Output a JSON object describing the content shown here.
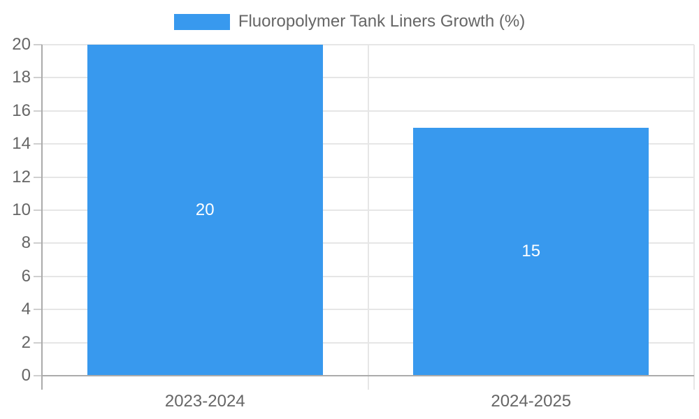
{
  "chart_data": {
    "type": "bar",
    "title": "Fluoropolymer Tank Liners Growth (%)",
    "categories": [
      "2023-2024",
      "2024-2025"
    ],
    "values": [
      20,
      15
    ],
    "data_labels": [
      "20",
      "15"
    ],
    "xlabel": "",
    "ylabel": "",
    "ylim": [
      0,
      20
    ],
    "ytick_step": 2,
    "ytick_labels": [
      "0",
      "2",
      "4",
      "6",
      "8",
      "10",
      "12",
      "14",
      "16",
      "18",
      "20"
    ],
    "grid": true,
    "legend": {
      "position": "top",
      "label": "Fluoropolymer Tank Liners Growth (%)"
    },
    "colors": {
      "bar": "#3899ee",
      "axis_line": "#ababab",
      "gridline": "#e6e6e6",
      "tick_mark": "#cfcfcf",
      "tick_text": "#666666",
      "data_label": "#ffffff",
      "background": "#ffffff"
    }
  }
}
